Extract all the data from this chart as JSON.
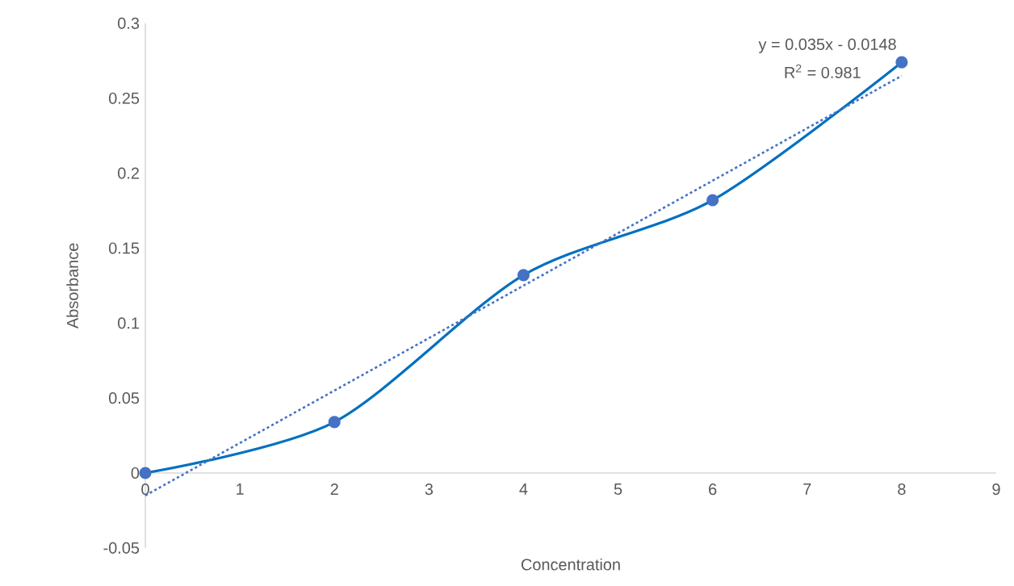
{
  "chart_data": {
    "type": "line",
    "xlabel": "Concentration",
    "ylabel": "Absorbance",
    "x": [
      0,
      2,
      4,
      6,
      8
    ],
    "series": [
      {
        "color": "#0070c0",
        "values": [
          0,
          0.034,
          0.132,
          0.182,
          0.274
        ],
        "marker": "circle",
        "line_style": "solid"
      },
      {
        "type": "line",
        "color": "#4472c4",
        "x": [
          0,
          8
        ],
        "values": [
          -0.015,
          0.265
        ],
        "marker": "none",
        "line_style": "dotted"
      }
    ],
    "annotations": [
      "y = 0.035x - 0.0148",
      "R$^{2}$ = 0.981"
    ],
    "xlim": [
      0,
      9
    ],
    "xticks": [
      0,
      1,
      2,
      3,
      4,
      5,
      6,
      7,
      8,
      9
    ],
    "ylim": [
      -0.05,
      0.3
    ],
    "yticks": [
      -0.05,
      0,
      0.05,
      0.1,
      0.15,
      0.2,
      0.25,
      0.3
    ],
    "grid": false
  }
}
